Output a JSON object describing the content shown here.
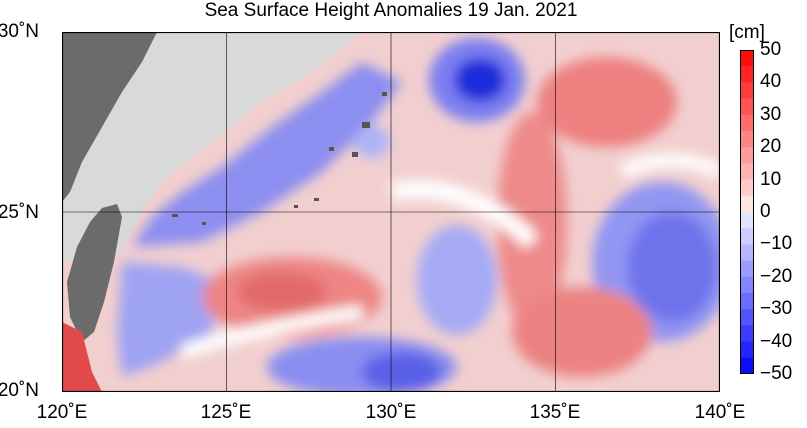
{
  "title": "Sea Surface Height Anomalies  19 Jan. 2021",
  "map": {
    "lat_labels": [
      "30˚N",
      "25˚N",
      "20˚N"
    ],
    "lon_labels": [
      "120˚E",
      "125˚E",
      "130˚E",
      "135˚E",
      "140˚E"
    ],
    "extent": {
      "lon": [
        120,
        140
      ],
      "lat": [
        20,
        30
      ]
    }
  },
  "colorbar": {
    "unit": "[cm]",
    "ticks": [
      "50",
      "40",
      "30",
      "20",
      "10",
      "0",
      "−10",
      "−20",
      "−30",
      "−40",
      "−50"
    ],
    "colors": {
      "pos_strong": "#ff0000",
      "pos_weak": "#ffe0e0",
      "neutral": "#ffffff",
      "neg_weak": "#e0e0ff",
      "neg_strong": "#0000ff",
      "land": "#6b6b6b",
      "land_light": "#d9d9d9"
    }
  }
}
